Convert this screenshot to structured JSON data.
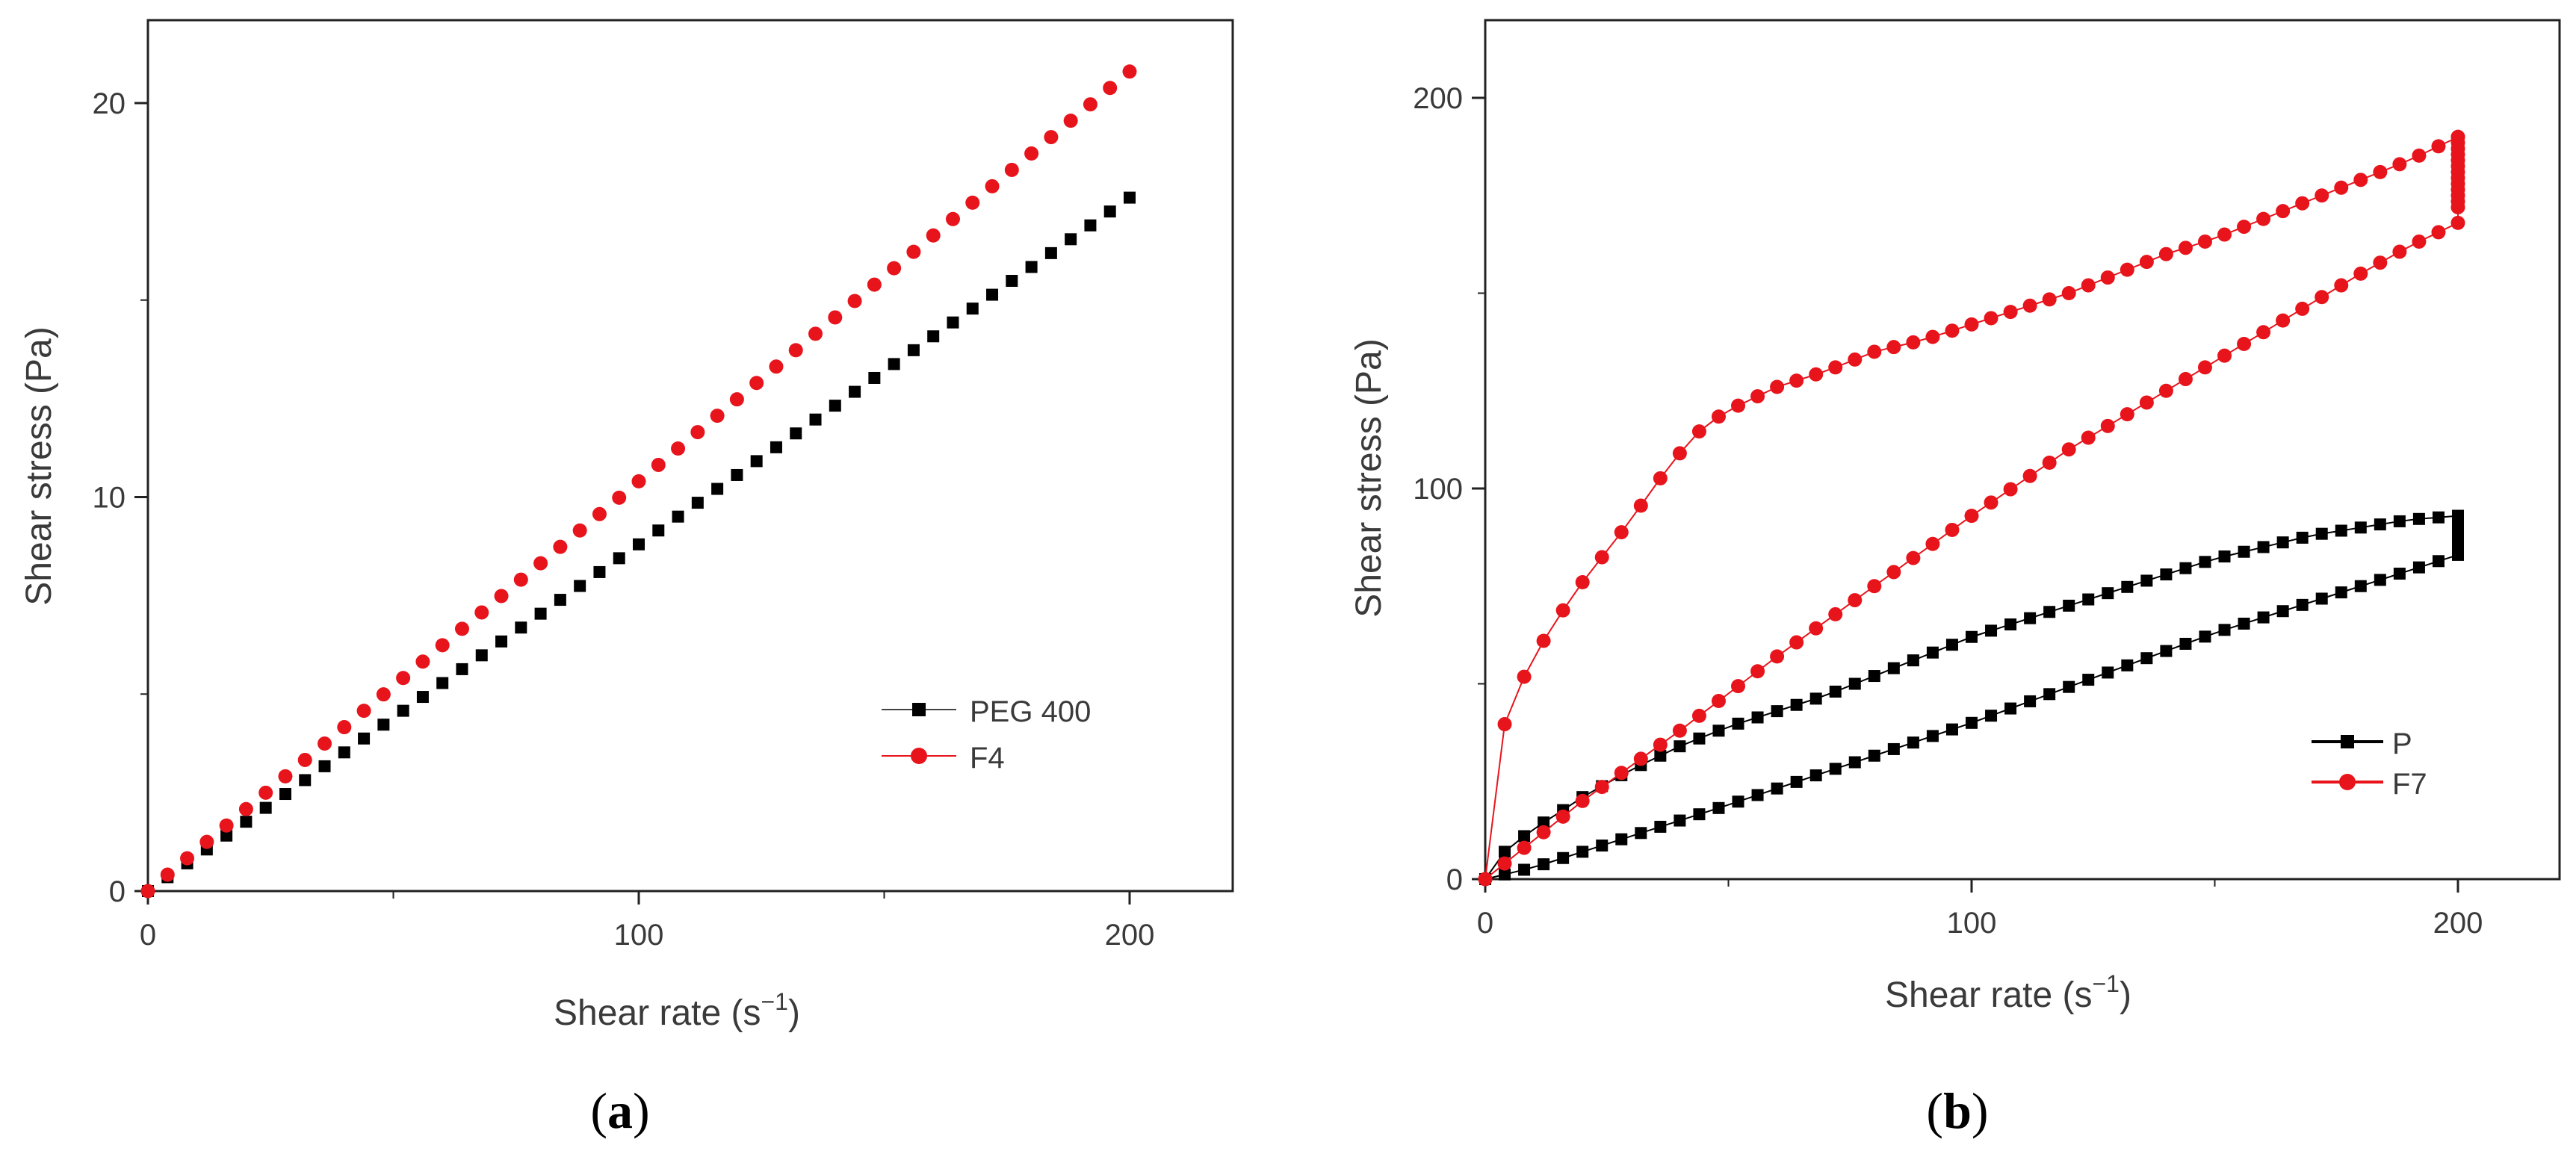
{
  "chart_data": [
    {
      "type": "scatter",
      "panel_label": "(a)",
      "panel_letter": "a",
      "xlabel": "Shear rate (s",
      "xlabel_exp": "−1",
      "xlabel_close": ")",
      "ylabel": "Shear stress (Pa)",
      "xlim": [
        0,
        220
      ],
      "ylim": [
        0,
        22
      ],
      "xticks": [
        0,
        100,
        200
      ],
      "xticks_minor": [
        50,
        150
      ],
      "yticks": [
        0,
        10,
        20
      ],
      "yticks_minor": [
        5,
        15
      ],
      "legend_position": "center-right",
      "series": [
        {
          "name": "PEG 400",
          "color": "#000000",
          "marker": "square",
          "fn": {
            "kind": "linear",
            "x_start": 0,
            "x_end": 200,
            "step": 4,
            "y_start": 0,
            "y_end": 17.6
          }
        },
        {
          "name": "F4",
          "color": "#e8141c",
          "marker": "circle",
          "fn": {
            "kind": "linear",
            "x_start": 0,
            "x_end": 200,
            "step": 4,
            "y_start": 0,
            "y_end": 20.8
          }
        }
      ]
    },
    {
      "type": "scatter",
      "panel_label": "(b)",
      "panel_letter": "b",
      "xlabel": "Shear rate (s",
      "xlabel_exp": "−1",
      "xlabel_close": ")",
      "ylabel": "Shear stress (Pa)",
      "xlim": [
        0,
        210
      ],
      "ylim": [
        0,
        220
      ],
      "xticks": [
        0,
        100,
        200
      ],
      "xticks_minor": [
        50,
        150
      ],
      "yticks": [
        0,
        100,
        200
      ],
      "yticks_minor": [
        50,
        150
      ],
      "legend_position": "bottom-right",
      "series": [
        {
          "name": "P",
          "color": "#000000",
          "marker": "square",
          "connected": true,
          "fn": {
            "kind": "loop",
            "up": [
              [
                0,
                0
              ],
              [
                2,
                5
              ],
              [
                6,
                9
              ],
              [
                10,
                13
              ],
              [
                14,
                16
              ],
              [
                20,
                21
              ],
              [
                30,
                28
              ],
              [
                40,
                34
              ],
              [
                50,
                39
              ],
              [
                60,
                43
              ],
              [
                70,
                47
              ],
              [
                80,
                52
              ],
              [
                90,
                57
              ],
              [
                100,
                62
              ],
              [
                110,
                66
              ],
              [
                120,
                70
              ],
              [
                130,
                74
              ],
              [
                140,
                78
              ],
              [
                150,
                82
              ],
              [
                160,
                85
              ],
              [
                170,
                88
              ],
              [
                180,
                90
              ],
              [
                190,
                92
              ],
              [
                200,
                93
              ]
            ],
            "hold": [
              200,
              93,
              83
            ],
            "down": [
              [
                200,
                83
              ],
              [
                150,
                63
              ],
              [
                100,
                40
              ],
              [
                50,
                19
              ],
              [
                25,
                9
              ],
              [
                10,
                3
              ],
              [
                0,
                0
              ]
            ],
            "step": 4
          }
        },
        {
          "name": "F7",
          "color": "#e8141c",
          "marker": "circle",
          "connected": true,
          "fn": {
            "kind": "loop",
            "up": [
              [
                0,
                0
              ],
              [
                2,
                31
              ],
              [
                5,
                44
              ],
              [
                10,
                57
              ],
              [
                15,
                67
              ],
              [
                20,
                76
              ],
              [
                25,
                84
              ],
              [
                30,
                92
              ],
              [
                35,
                101
              ],
              [
                40,
                109
              ],
              [
                45,
                116
              ],
              [
                50,
                120
              ],
              [
                55,
                123
              ],
              [
                60,
                126
              ],
              [
                70,
                130
              ],
              [
                80,
                135
              ],
              [
                90,
                138
              ],
              [
                100,
                142
              ],
              [
                110,
                146
              ],
              [
                120,
                150
              ],
              [
                130,
                155
              ],
              [
                140,
                160
              ],
              [
                150,
                164
              ],
              [
                160,
                169
              ],
              [
                170,
                174
              ],
              [
                180,
                179
              ],
              [
                190,
                184
              ],
              [
                200,
                190
              ]
            ],
            "hold": [
              200,
              190,
              171
            ],
            "down": [
              [
                200,
                168
              ],
              [
                190,
                162
              ],
              [
                180,
                155
              ],
              [
                160,
                140
              ],
              [
                140,
                125
              ],
              [
                120,
                110
              ],
              [
                100,
                93
              ],
              [
                80,
                75
              ],
              [
                60,
                57
              ],
              [
                40,
                38
              ],
              [
                20,
                20
              ],
              [
                5,
                5
              ],
              [
                0,
                0
              ]
            ],
            "step": 4
          }
        }
      ]
    }
  ]
}
